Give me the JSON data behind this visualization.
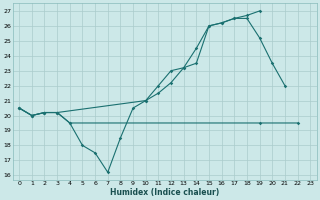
{
  "xlabel": "Humidex (Indice chaleur)",
  "bg_color": "#cce8e8",
  "line_color": "#1a7070",
  "grid_color": "#aacccc",
  "xlim": [
    -0.5,
    23.5
  ],
  "ylim": [
    15.7,
    27.5
  ],
  "yticks": [
    16,
    17,
    18,
    19,
    20,
    21,
    22,
    23,
    24,
    25,
    26,
    27
  ],
  "xticks": [
    0,
    1,
    2,
    3,
    4,
    5,
    6,
    7,
    8,
    9,
    10,
    11,
    12,
    13,
    14,
    15,
    16,
    17,
    18,
    19,
    20,
    21,
    22,
    23
  ],
  "serA_x": [
    0,
    1,
    2,
    3,
    4,
    5,
    6,
    7,
    8,
    9,
    10,
    11,
    12,
    13,
    14,
    15,
    16,
    17,
    18,
    19,
    20,
    21
  ],
  "serA_y": [
    20.5,
    20.0,
    20.2,
    20.2,
    19.5,
    18.0,
    17.5,
    16.2,
    18.5,
    20.5,
    21.0,
    22.0,
    23.0,
    23.2,
    24.5,
    26.0,
    26.2,
    26.5,
    26.5,
    25.2,
    23.5,
    22.0
  ],
  "serB_x": [
    0,
    1,
    2,
    3,
    10,
    11,
    12,
    13,
    14,
    15,
    16,
    17,
    18,
    19
  ],
  "serB_y": [
    20.5,
    20.0,
    20.2,
    20.2,
    21.0,
    21.5,
    22.2,
    23.2,
    23.5,
    26.0,
    26.2,
    26.5,
    26.7,
    27.0
  ],
  "serC_x": [
    0,
    1,
    2,
    3,
    4,
    19,
    22
  ],
  "serC_y": [
    20.5,
    20.0,
    20.2,
    20.2,
    19.5,
    19.5,
    19.5
  ]
}
